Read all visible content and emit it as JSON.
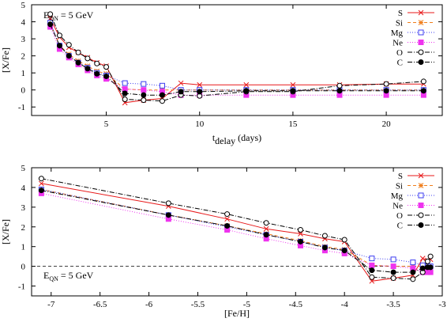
{
  "chart_data": [
    {
      "type": "line",
      "xlabel": "t",
      "xlabel_sub": "delay",
      "xlabel_unit": " (days)",
      "ylabel": "[X/Fe]",
      "xlim": [
        1,
        23
      ],
      "ylim": [
        -1.5,
        5
      ],
      "xticks": [
        5,
        10,
        15,
        20
      ],
      "yticks": [
        -1,
        0,
        1,
        2,
        3,
        4,
        5
      ],
      "annotation": {
        "pre": "E",
        "sub": "QN",
        "post": " = 5 GeV"
      },
      "legend_position": "top-right",
      "series": [
        {
          "name": "S",
          "color": "#e8191a",
          "dash": "",
          "marker": "x",
          "x": [
            2,
            2.5,
            3,
            3.5,
            4,
            4.5,
            5,
            6,
            7,
            8,
            9,
            10,
            12.5,
            15,
            17.5,
            20,
            22
          ],
          "y": [
            4.2,
            3.1,
            2.5,
            2.2,
            1.9,
            1.6,
            1.4,
            -0.75,
            -0.6,
            -0.5,
            0.4,
            0.3,
            0.3,
            0.3,
            0.3,
            0.35,
            0.35
          ]
        },
        {
          "name": "Si",
          "color": "#f07d1a",
          "dash": "4,3",
          "marker": "star",
          "x": [
            2,
            2.5,
            3,
            3.5,
            4,
            4.5,
            5,
            6,
            7,
            8,
            9,
            10,
            12.5,
            15,
            17.5,
            20,
            22
          ],
          "y": [
            3.9,
            2.6,
            2.1,
            1.7,
            1.4,
            1.1,
            0.95,
            0.05,
            0.0,
            0.0,
            0.0,
            0.0,
            0.0,
            0.0,
            0.0,
            0.0,
            0.0
          ]
        },
        {
          "name": "Mg",
          "color": "#3c3cf0",
          "dash": "1,2",
          "marker": "square",
          "x": [
            2,
            2.5,
            3,
            3.5,
            4,
            4.5,
            5,
            6,
            7,
            8,
            9,
            10,
            12.5,
            15,
            17.5,
            20,
            22
          ],
          "y": [
            3.95,
            2.6,
            2.0,
            1.6,
            1.3,
            1.0,
            0.85,
            0.4,
            0.35,
            0.25,
            0.0,
            0.0,
            0.0,
            0.0,
            0.0,
            0.0,
            0.0
          ]
        },
        {
          "name": "Ne",
          "color": "#ee33ee",
          "dash": "1,2",
          "marker": "filled-square",
          "x": [
            2,
            2.5,
            3,
            3.5,
            4,
            4.5,
            5,
            6,
            7,
            8,
            9,
            10,
            12.5,
            15,
            17.5,
            20,
            22
          ],
          "y": [
            3.7,
            2.4,
            1.9,
            1.5,
            1.15,
            0.85,
            0.65,
            0.05,
            0.0,
            -0.1,
            -0.3,
            -0.3,
            -0.3,
            -0.3,
            -0.3,
            -0.3,
            -0.3
          ]
        },
        {
          "name": "O",
          "color": "#000000",
          "dash": "6,2,1,2",
          "marker": "circle",
          "x": [
            2,
            2.5,
            3,
            3.5,
            4,
            4.5,
            5,
            6,
            7,
            8,
            9,
            10,
            12.5,
            15,
            17.5,
            20,
            22
          ],
          "y": [
            4.45,
            3.2,
            2.65,
            2.2,
            1.85,
            1.55,
            1.35,
            -0.55,
            -0.6,
            -0.65,
            -0.3,
            -0.35,
            -0.1,
            -0.1,
            0.25,
            0.35,
            0.5
          ]
        },
        {
          "name": "C",
          "color": "#000000",
          "dash": "6,2,1,2",
          "marker": "filled-circle",
          "x": [
            2,
            2.5,
            3,
            3.5,
            4,
            4.5,
            5,
            6,
            7,
            8,
            9,
            10,
            12.5,
            15,
            17.5,
            20,
            22
          ],
          "y": [
            3.85,
            2.6,
            2.0,
            1.6,
            1.25,
            0.95,
            0.8,
            -0.2,
            -0.3,
            -0.3,
            -0.1,
            -0.1,
            -0.05,
            -0.05,
            -0.05,
            -0.05,
            -0.05
          ]
        }
      ]
    },
    {
      "type": "line",
      "xlabel": "[Fe/H]",
      "ylabel": "[X/Fe]",
      "xlim": [
        -7.2,
        -3.0
      ],
      "ylim": [
        -1.5,
        5
      ],
      "xticks": [
        -7,
        -6.5,
        -6,
        -5.5,
        -5,
        -4.5,
        -4,
        -3.5,
        -3
      ],
      "yticks": [
        -1,
        0,
        1,
        2,
        3,
        4,
        5
      ],
      "zero_line": true,
      "annotation": {
        "pre": "E",
        "sub": "QN",
        "post": " = 5 GeV"
      },
      "legend_position": "top-right",
      "series": [
        {
          "name": "S",
          "color": "#e8191a",
          "dash": "",
          "marker": "x",
          "x": [
            -7.1,
            -5.8,
            -5.2,
            -4.8,
            -4.45,
            -4.2,
            -4.0,
            -3.72,
            -3.5,
            -3.3,
            -3.2,
            -3.15,
            -3.12
          ],
          "y": [
            4.2,
            3.05,
            2.4,
            1.9,
            1.65,
            1.4,
            1.25,
            -0.75,
            -0.6,
            -0.45,
            0.4,
            0.3,
            0.35
          ]
        },
        {
          "name": "Si",
          "color": "#f07d1a",
          "dash": "4,3",
          "marker": "star",
          "x": [
            -7.1,
            -5.8,
            -5.2,
            -4.8,
            -4.45,
            -4.2,
            -4.0,
            -3.72,
            -3.5,
            -3.3,
            -3.2,
            -3.15,
            -3.12
          ],
          "y": [
            3.9,
            2.6,
            2.05,
            1.65,
            1.3,
            1.0,
            0.85,
            0.05,
            0.0,
            0.0,
            0.0,
            0.0,
            0.0
          ]
        },
        {
          "name": "Mg",
          "color": "#3c3cf0",
          "dash": "1,2",
          "marker": "square",
          "x": [
            -7.1,
            -5.8,
            -5.2,
            -4.8,
            -4.45,
            -4.2,
            -4.0,
            -3.72,
            -3.5,
            -3.3,
            -3.2,
            -3.15,
            -3.12
          ],
          "y": [
            3.9,
            2.6,
            2.0,
            1.6,
            1.25,
            0.95,
            0.8,
            0.4,
            0.35,
            0.2,
            0.05,
            0.0,
            0.0
          ]
        },
        {
          "name": "Ne",
          "color": "#ee33ee",
          "dash": "1,2",
          "marker": "filled-square",
          "x": [
            -7.1,
            -5.8,
            -5.2,
            -4.8,
            -4.45,
            -4.2,
            -4.0,
            -3.72,
            -3.5,
            -3.3,
            -3.2,
            -3.15,
            -3.12
          ],
          "y": [
            3.7,
            2.4,
            1.85,
            1.4,
            1.05,
            0.8,
            0.65,
            0.05,
            0.0,
            -0.1,
            -0.3,
            -0.3,
            -0.3
          ]
        },
        {
          "name": "O",
          "color": "#000000",
          "dash": "6,2,1,2",
          "marker": "circle",
          "x": [
            -7.1,
            -5.8,
            -5.2,
            -4.8,
            -4.45,
            -4.2,
            -4.0,
            -3.72,
            -3.5,
            -3.3,
            -3.2,
            -3.15,
            -3.12
          ],
          "y": [
            4.45,
            3.2,
            2.65,
            2.2,
            1.85,
            1.55,
            1.35,
            -0.55,
            -0.6,
            -0.65,
            -0.3,
            0.25,
            0.5
          ]
        },
        {
          "name": "C",
          "color": "#000000",
          "dash": "6,2,1,2",
          "marker": "filled-circle",
          "x": [
            -7.1,
            -5.8,
            -5.2,
            -4.8,
            -4.45,
            -4.2,
            -4.0,
            -3.72,
            -3.5,
            -3.3,
            -3.2,
            -3.15,
            -3.12
          ],
          "y": [
            3.85,
            2.6,
            2.05,
            1.6,
            1.25,
            0.95,
            0.8,
            -0.2,
            -0.3,
            -0.3,
            -0.1,
            -0.05,
            -0.05
          ]
        }
      ]
    }
  ]
}
